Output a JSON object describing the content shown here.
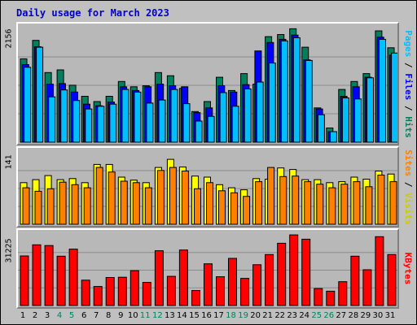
{
  "chart_data": {
    "type": "bar",
    "title": "Daily usage for March 2023",
    "categories": [
      "1",
      "2",
      "3",
      "4",
      "5",
      "6",
      "7",
      "8",
      "9",
      "10",
      "11",
      "12",
      "13",
      "14",
      "15",
      "16",
      "17",
      "18",
      "19",
      "20",
      "21",
      "22",
      "23",
      "24",
      "25",
      "26",
      "27",
      "28",
      "29",
      "30",
      "31"
    ],
    "weekend_days": [
      "4",
      "5",
      "11",
      "12",
      "18",
      "19",
      "25",
      "26"
    ],
    "panels": [
      {
        "name": "hits-files-pages",
        "ymax_label": "2156",
        "ylim": [
          0,
          2156
        ],
        "legend": [
          "Pages",
          "Files",
          "Hits"
        ],
        "series": [
          {
            "name": "Hits",
            "color": "#00805c",
            "values": [
              1580,
              1930,
              1320,
              1370,
              1080,
              870,
              770,
              870,
              1150,
              1050,
              1070,
              1320,
              1260,
              1020,
              580,
              770,
              1230,
              980,
              1300,
              1100,
              2000,
              2040,
              2150,
              1800,
              650,
              270,
              1000,
              1150,
              1300,
              2110,
              1790
            ]
          },
          {
            "name": "Files",
            "color": "#0000ff",
            "values": [
              1470,
              1810,
              1100,
              1110,
              950,
              720,
              690,
              760,
              1050,
              980,
              1050,
              1100,
              1070,
              1050,
              560,
              650,
              1070,
              950,
              1090,
              1730,
              1890,
              1950,
              2030,
              1560,
              630,
              200,
              870,
              1050,
              1230,
              1990,
              1650
            ]
          },
          {
            "name": "Pages",
            "color": "#00bfff",
            "values": [
              1420,
              1800,
              860,
              990,
              790,
              630,
              680,
              720,
              1000,
              950,
              740,
              800,
              1000,
              730,
              400,
              490,
              940,
              680,
              1010,
              1140,
              1500,
              1920,
              1980,
              1550,
              520,
              200,
              840,
              820,
              1220,
              1950,
              1690
            ]
          }
        ]
      },
      {
        "name": "sites-visits",
        "ymax_label": "141",
        "ylim": [
          0,
          141
        ],
        "legend": [
          "Sites",
          "Visits"
        ],
        "series": [
          {
            "name": "Visits",
            "color": "#ffff00",
            "values": [
              82,
              88,
              96,
              88,
              90,
              82,
              118,
              118,
              93,
              87,
              82,
              112,
              128,
              113,
              95,
              93,
              78,
              72,
              68,
              90,
              89,
              111,
              108,
              88,
              88,
              82,
              84,
              93,
              89,
              105,
              99
            ]
          },
          {
            "name": "Sites",
            "color": "#ff8000",
            "values": [
              72,
              65,
              70,
              83,
              78,
              72,
              112,
              103,
              85,
              82,
              72,
              106,
              112,
              105,
              70,
              82,
              66,
              62,
              55,
              84,
              112,
              94,
              95,
              84,
              79,
              72,
              79,
              84,
              74,
              97,
              84
            ]
          }
        ]
      },
      {
        "name": "kbytes",
        "ymax_label": "31225",
        "ylim": [
          0,
          31225
        ],
        "legend": [
          "KBytes"
        ],
        "series": [
          {
            "name": "KBytes",
            "color": "#ff0000",
            "values": [
              21900,
              26800,
              26500,
              21800,
              24900,
              11200,
              8400,
              12400,
              12500,
              15400,
              10200,
              24200,
              12900,
              24500,
              6600,
              18400,
              12700,
              20800,
              12000,
              18000,
              22500,
              27500,
              31200,
              29300,
              7500,
              6300,
              10500,
              21800,
              15800,
              30400,
              22500
            ]
          }
        ]
      }
    ]
  }
}
